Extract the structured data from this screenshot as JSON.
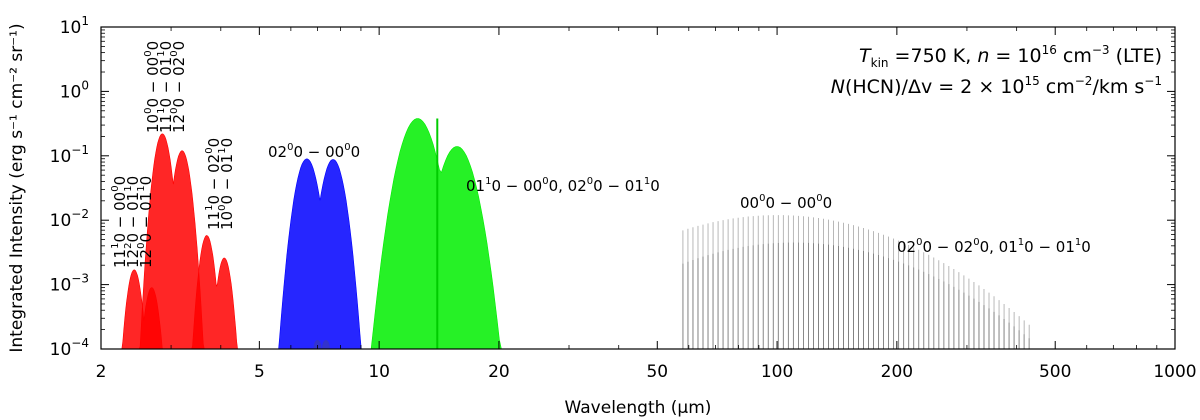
{
  "chart_data": {
    "type": "area",
    "xscale": "log",
    "yscale": "log",
    "xlim": [
      2,
      1000
    ],
    "ylim": [
      0.0001,
      10
    ],
    "xlabel": "Wavelength (μm)",
    "ylabel": "Integrated Intensity (erg s⁻¹ cm⁻² sr⁻¹)",
    "xticks": [
      {
        "value": 2,
        "label": "2"
      },
      {
        "value": 5,
        "label": "5"
      },
      {
        "value": 10,
        "label": "10"
      },
      {
        "value": 20,
        "label": "20"
      },
      {
        "value": 50,
        "label": "50"
      },
      {
        "value": 100,
        "label": "100"
      },
      {
        "value": 200,
        "label": "200"
      },
      {
        "value": 500,
        "label": "500"
      },
      {
        "value": 1000,
        "label": "1000"
      }
    ],
    "yticks": [
      {
        "value": 0.0001,
        "base": "10",
        "exp": "−4"
      },
      {
        "value": 0.001,
        "base": "10",
        "exp": "−3"
      },
      {
        "value": 0.01,
        "base": "10",
        "exp": "−2"
      },
      {
        "value": 0.1,
        "base": "10",
        "exp": "−1"
      },
      {
        "value": 1,
        "base": "10",
        "exp": "0"
      },
      {
        "value": 10,
        "base": "10",
        "exp": "1"
      }
    ],
    "annotation": {
      "line1": {
        "T": "T",
        "Tsub": "kin",
        "eq": " =750 K, ",
        "n": "n",
        "neq": " = 10",
        "nexp": "16",
        "unit": " cm",
        "unitexp": "−3",
        "tail": " (LTE)"
      },
      "line2": {
        "N": "N",
        "mol": "(HCN)/Δv = 2 × 10",
        "exp": "15",
        "unit": " cm",
        "unitexp": "−2",
        "tail": "/km s",
        "tailexp": "−1"
      }
    },
    "series": [
      {
        "name": "11¹0−00⁰0 / 12⁰0−01¹0 / 12²0−01¹0 band",
        "color": "#ff0000",
        "center_um": 2.55,
        "peak": 0.0017,
        "wing_peak": 0.0009,
        "width": 0.04
      },
      {
        "name": "10⁰0−00⁰0 / 11¹0−01¹0 / 12⁰0−02⁰0 band",
        "color": "#ff0000",
        "center_um": 3.02,
        "peak": 0.22,
        "wing_peak": 0.12,
        "width": 0.045
      },
      {
        "name": "11¹0−02⁰0 / 10⁰0−01¹0 band",
        "color": "#ff0000",
        "center_um": 3.88,
        "peak": 0.0058,
        "wing_peak": 0.0026,
        "width": 0.04
      },
      {
        "name": "02⁰0−00⁰0 band",
        "color": "#0000ff",
        "center_um": 7.1,
        "peak": 0.09,
        "wing_peak": 0.088,
        "width": 0.06
      },
      {
        "name": "01¹0−00⁰0, 02⁰0−01¹0 band",
        "color": "#00ee00",
        "center_um": 14.0,
        "peak": 0.38,
        "wing_peak": 0.14,
        "width": 0.09
      },
      {
        "name": "00⁰0−00⁰0 rotational",
        "color": "#888888",
        "center_um": 100,
        "peak": 0.012,
        "width": 0.32
      },
      {
        "name": "02⁰0−02⁰0, 01¹0−01¹0 rotational",
        "color": "#aaaaaa",
        "center_um": 110,
        "peak": 0.0045,
        "width": 0.32
      }
    ],
    "band_labels": [
      {
        "id": "nir1",
        "lines": [
          [
            {
              "t": "11"
            },
            {
              "t": "1",
              "s": 1
            },
            {
              "t": "0 − 00"
            },
            {
              "t": "0",
              "s": 1
            },
            {
              "t": "0"
            }
          ],
          [
            {
              "t": "12"
            },
            {
              "t": "2",
              "s": 1
            },
            {
              "t": "0 − 01"
            },
            {
              "t": "1",
              "s": 1
            },
            {
              "t": "0"
            }
          ],
          [
            {
              "t": "12"
            },
            {
              "t": "0",
              "s": 1
            },
            {
              "t": "0 − 01"
            },
            {
              "t": "1",
              "s": 1
            },
            {
              "t": "0"
            }
          ]
        ]
      },
      {
        "id": "nir2",
        "lines": [
          [
            {
              "t": "10"
            },
            {
              "t": "0",
              "s": 1
            },
            {
              "t": "0 − 00"
            },
            {
              "t": "0",
              "s": 1
            },
            {
              "t": "0"
            }
          ],
          [
            {
              "t": "11"
            },
            {
              "t": "1",
              "s": 1
            },
            {
              "t": "0 − 01"
            },
            {
              "t": "1",
              "s": 1
            },
            {
              "t": "0"
            }
          ],
          [
            {
              "t": "12"
            },
            {
              "t": "0",
              "s": 1
            },
            {
              "t": "0 − 02"
            },
            {
              "t": "0",
              "s": 1
            },
            {
              "t": "0"
            }
          ]
        ]
      },
      {
        "id": "nir3",
        "lines": [
          [
            {
              "t": "11"
            },
            {
              "t": "1",
              "s": 1
            },
            {
              "t": "0 − 02"
            },
            {
              "t": "0",
              "s": 1
            },
            {
              "t": "0"
            }
          ],
          [
            {
              "t": "10"
            },
            {
              "t": "0",
              "s": 1
            },
            {
              "t": "0 − 01"
            },
            {
              "t": "1",
              "s": 1
            },
            {
              "t": "0"
            }
          ]
        ]
      },
      {
        "id": "blue",
        "lines": [
          [
            {
              "t": "02"
            },
            {
              "t": "0",
              "s": 1
            },
            {
              "t": "0 − 00"
            },
            {
              "t": "0",
              "s": 1
            },
            {
              "t": "0"
            }
          ]
        ]
      },
      {
        "id": "green",
        "lines": [
          [
            {
              "t": "01"
            },
            {
              "t": "1",
              "s": 1
            },
            {
              "t": "0 − 00"
            },
            {
              "t": "0",
              "s": 1
            },
            {
              "t": "0, 02"
            },
            {
              "t": "0",
              "s": 1
            },
            {
              "t": "0 − 01"
            },
            {
              "t": "1",
              "s": 1
            },
            {
              "t": "0"
            }
          ]
        ]
      },
      {
        "id": "rot1",
        "lines": [
          [
            {
              "t": "00"
            },
            {
              "t": "0",
              "s": 1
            },
            {
              "t": "0 − 00"
            },
            {
              "t": "0",
              "s": 1
            },
            {
              "t": "0"
            }
          ]
        ]
      },
      {
        "id": "rot2",
        "lines": [
          [
            {
              "t": "02"
            },
            {
              "t": "0",
              "s": 1
            },
            {
              "t": "0 − 02"
            },
            {
              "t": "0",
              "s": 1
            },
            {
              "t": "0, 01"
            },
            {
              "t": "1",
              "s": 1
            },
            {
              "t": "0 − 01"
            },
            {
              "t": "1",
              "s": 1
            },
            {
              "t": "0"
            }
          ]
        ]
      }
    ]
  }
}
